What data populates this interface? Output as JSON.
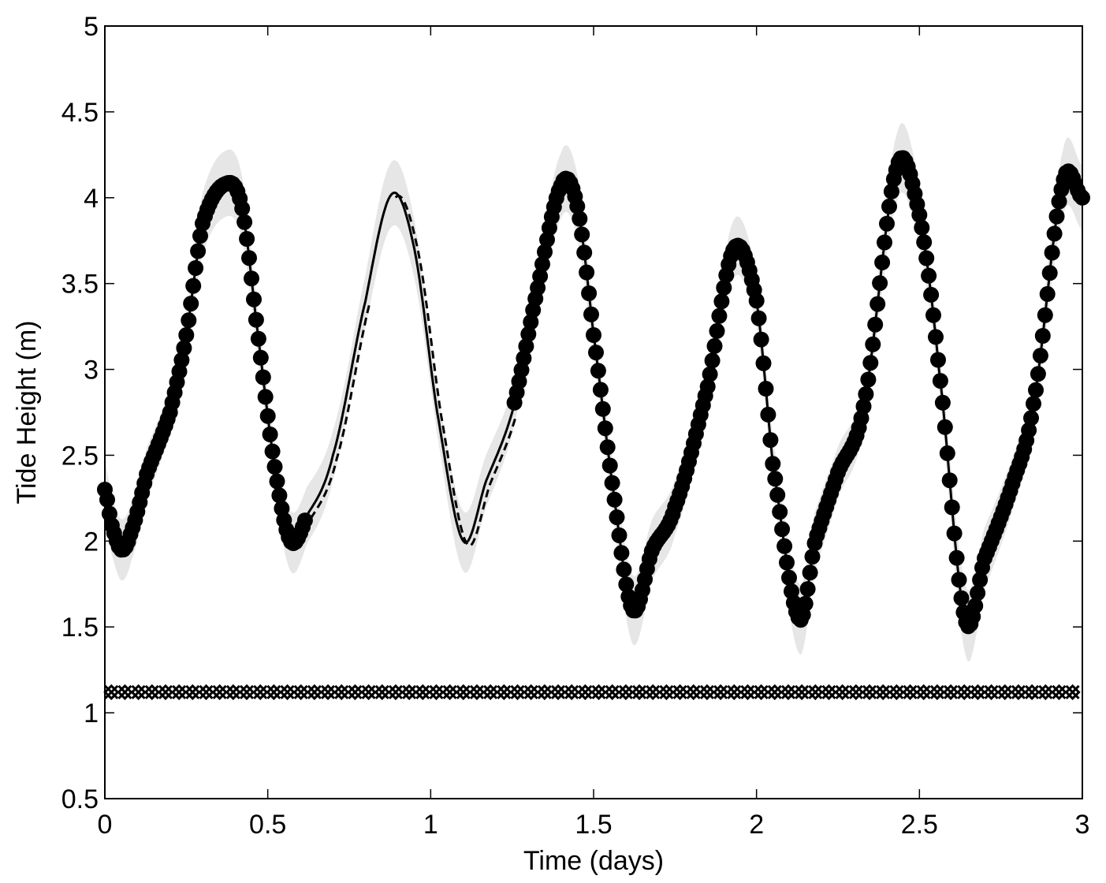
{
  "chart_data": {
    "type": "line",
    "title": "",
    "xlabel": "Time (days)",
    "ylabel": "Tide Height (m)",
    "xlim": [
      0,
      3
    ],
    "ylim": [
      0.5,
      5
    ],
    "xticks": [
      "0",
      "0.5",
      "1",
      "1.5",
      "2",
      "2.5",
      "3"
    ],
    "yticks": [
      "0.5",
      "1",
      "1.5",
      "2",
      "2.5",
      "3",
      "3.5",
      "4",
      "4.5",
      "5"
    ],
    "grid": false,
    "legend": "none",
    "colors": {
      "line": "#000000",
      "band": "#e6e6e6",
      "markers": "#000000"
    },
    "series": [
      {
        "style": "solid line with filled circle markers where observed",
        "x": [
          0,
          0.02,
          0.05,
          0.08,
          0.13,
          0.2,
          0.25,
          0.3,
          0.37,
          0.42,
          0.47,
          0.52,
          0.57,
          0.62,
          0.7,
          0.8,
          0.88,
          0.95,
          1.02,
          1.1,
          1.17,
          1.25,
          1.32,
          1.4,
          1.45,
          1.5,
          1.56,
          1.62,
          1.68,
          1.75,
          1.85,
          1.93,
          2.0,
          2.05,
          2.13,
          2.18,
          2.25,
          2.33,
          2.43,
          2.5,
          2.56,
          2.64,
          2.7,
          2.78,
          2.85,
          2.94,
          3.0
        ],
        "y": [
          2.3,
          2.1,
          1.95,
          2.05,
          2.4,
          2.75,
          3.2,
          3.85,
          4.08,
          3.95,
          3.2,
          2.45,
          2.0,
          2.15,
          2.5,
          3.4,
          4.02,
          3.7,
          2.75,
          2.0,
          2.35,
          2.75,
          3.4,
          4.07,
          3.95,
          3.2,
          2.3,
          1.6,
          1.95,
          2.2,
          2.9,
          3.7,
          3.4,
          2.45,
          1.55,
          2.0,
          2.4,
          2.8,
          4.17,
          3.9,
          3.0,
          1.55,
          1.9,
          2.3,
          2.8,
          4.08,
          4.0
        ]
      }
    ],
    "observed_ranges": [
      [
        0,
        0.62
      ],
      [
        1.25,
        3.0
      ]
    ],
    "dashed_ranges": [
      [
        0.62,
        0.8
      ],
      [
        0.88,
        1.25
      ]
    ],
    "threshold_markers": {
      "y": 1.12,
      "x_start": 0.02,
      "x_end": 2.97,
      "count": 72,
      "marker": "x-diamond"
    }
  }
}
